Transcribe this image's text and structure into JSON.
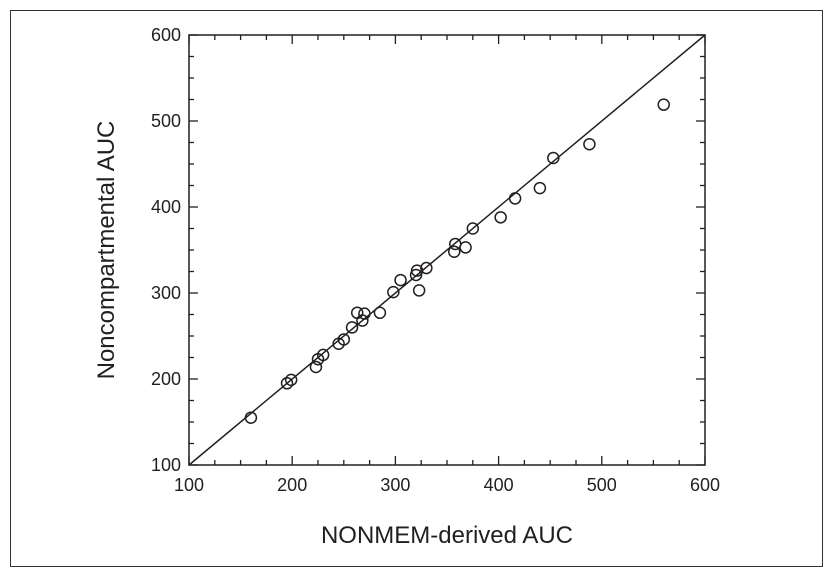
{
  "chart_data": {
    "type": "scatter",
    "title": "",
    "xlabel": "NONMEM-derived AUC",
    "ylabel": "Noncompartmental AUC",
    "xlim": [
      100,
      600
    ],
    "ylim": [
      100,
      600
    ],
    "x_ticks": [
      "100",
      "200",
      "300",
      "400",
      "500",
      "600"
    ],
    "y_ticks": [
      "100",
      "200",
      "300",
      "400",
      "500",
      "600"
    ],
    "grid": false,
    "legend": "none",
    "identity_line": true,
    "marker": "open-circle",
    "colors": {
      "ink": "#231f20",
      "background": "#ffffff"
    },
    "points": [
      {
        "x": 160,
        "y": 155
      },
      {
        "x": 195,
        "y": 195
      },
      {
        "x": 199,
        "y": 199
      },
      {
        "x": 223,
        "y": 214
      },
      {
        "x": 225,
        "y": 223
      },
      {
        "x": 230,
        "y": 228
      },
      {
        "x": 245,
        "y": 241
      },
      {
        "x": 250,
        "y": 246
      },
      {
        "x": 258,
        "y": 260
      },
      {
        "x": 263,
        "y": 277
      },
      {
        "x": 268,
        "y": 268
      },
      {
        "x": 270,
        "y": 276
      },
      {
        "x": 285,
        "y": 277
      },
      {
        "x": 298,
        "y": 301
      },
      {
        "x": 305,
        "y": 315
      },
      {
        "x": 320,
        "y": 321
      },
      {
        "x": 321,
        "y": 326
      },
      {
        "x": 323,
        "y": 303
      },
      {
        "x": 330,
        "y": 329
      },
      {
        "x": 357,
        "y": 348
      },
      {
        "x": 358,
        "y": 357
      },
      {
        "x": 368,
        "y": 353
      },
      {
        "x": 375,
        "y": 375
      },
      {
        "x": 402,
        "y": 388
      },
      {
        "x": 416,
        "y": 410
      },
      {
        "x": 440,
        "y": 422
      },
      {
        "x": 453,
        "y": 457
      },
      {
        "x": 488,
        "y": 473
      },
      {
        "x": 560,
        "y": 519
      }
    ]
  }
}
